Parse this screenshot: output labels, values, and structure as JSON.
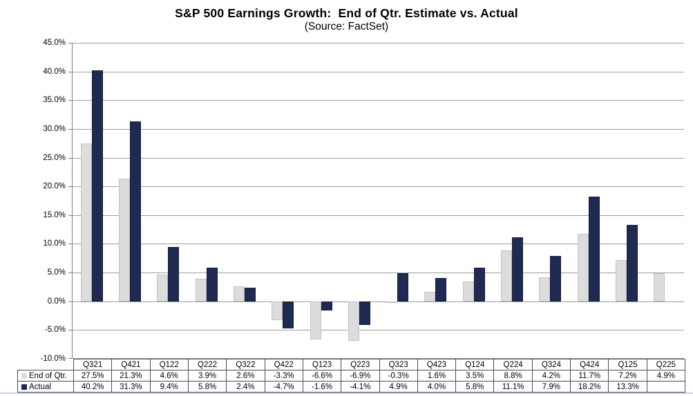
{
  "title": "S&P 500 Earnings Growth:  End of Qtr. Estimate vs. Actual",
  "subtitle": "(Source: FactSet)",
  "chart_data": {
    "type": "bar",
    "title": "S&P 500 Earnings Growth: End of Qtr. Estimate vs. Actual",
    "subtitle": "(Source: FactSet)",
    "categories": [
      "Q321",
      "Q421",
      "Q122",
      "Q222",
      "Q322",
      "Q422",
      "Q123",
      "Q223",
      "Q323",
      "Q423",
      "Q124",
      "Q224",
      "Q324",
      "Q424",
      "Q125",
      "Q225"
    ],
    "series": [
      {
        "name": "End of Qtr.",
        "color": "#DCDCDC",
        "border_color": "#C2C2C2",
        "values": [
          27.5,
          21.3,
          4.6,
          3.9,
          2.6,
          -3.3,
          -6.6,
          -6.9,
          -0.3,
          1.6,
          3.5,
          8.8,
          4.2,
          11.7,
          7.2,
          4.9
        ]
      },
      {
        "name": "Actual",
        "color": "#1F2A52",
        "border_color": "#141D3B",
        "values": [
          40.2,
          31.3,
          9.4,
          5.8,
          2.4,
          -4.7,
          -1.6,
          -4.1,
          4.9,
          4.0,
          5.8,
          11.1,
          7.9,
          18.2,
          13.3,
          null
        ]
      }
    ],
    "xlabel": "",
    "ylabel": "",
    "ylim": [
      -10,
      45
    ],
    "ytick_step": 5,
    "ytick_suffix": "%",
    "value_suffix": "%",
    "grid": true,
    "legend_position": "data-table-left"
  },
  "colors": {
    "grid": "#9E9E9E",
    "axis": "#7F7F7F",
    "table_border": "#4D4D4D",
    "bottom_edge": "#C9D0E6",
    "background": "#FFFFFF",
    "text": "#000000"
  }
}
